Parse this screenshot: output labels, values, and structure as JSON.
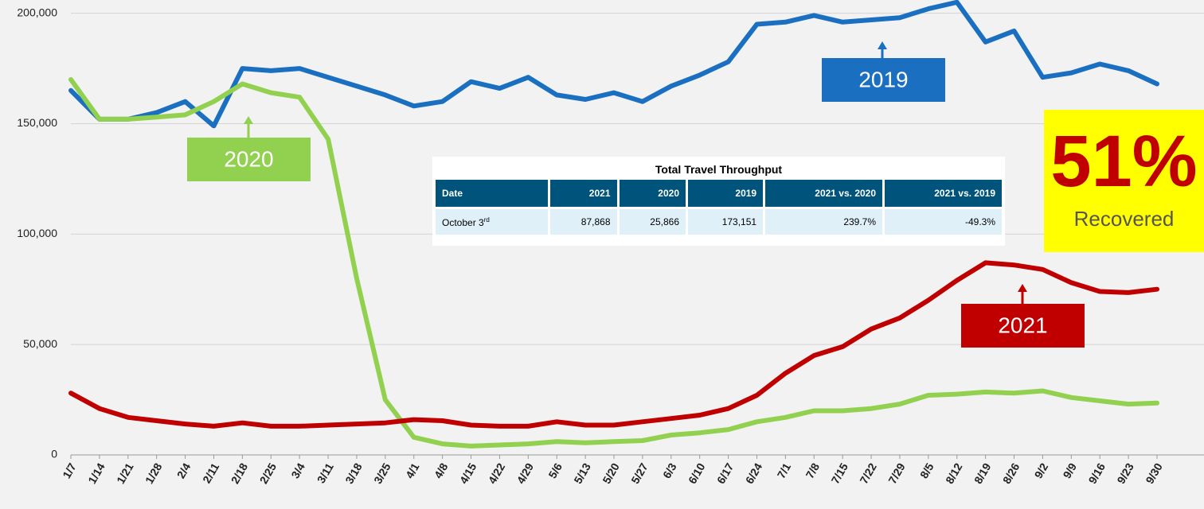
{
  "chart_data": {
    "type": "line",
    "categories": [
      "1/7",
      "1/14",
      "1/21",
      "1/28",
      "2/4",
      "2/11",
      "2/18",
      "2/25",
      "3/4",
      "3/11",
      "3/18",
      "3/25",
      "4/1",
      "4/8",
      "4/15",
      "4/22",
      "4/29",
      "5/6",
      "5/13",
      "5/20",
      "5/27",
      "6/3",
      "6/10",
      "6/17",
      "6/24",
      "7/1",
      "7/8",
      "7/15",
      "7/22",
      "7/29",
      "8/5",
      "8/12",
      "8/19",
      "8/26",
      "9/2",
      "9/9",
      "9/16",
      "9/23",
      "9/30"
    ],
    "series": [
      {
        "name": "2019",
        "color": "#1a6fc0",
        "values": [
          165000,
          152000,
          152000,
          155000,
          160000,
          149000,
          175000,
          174000,
          175000,
          171000,
          167000,
          163000,
          158000,
          160000,
          169000,
          166000,
          171000,
          163000,
          161000,
          164000,
          160000,
          167000,
          172000,
          178000,
          195000,
          196000,
          199000,
          196000,
          197000,
          198000,
          202000,
          205000,
          187000,
          192000,
          171000,
          173000,
          177000,
          174000,
          168000
        ]
      },
      {
        "name": "2020",
        "color": "#92d050",
        "values": [
          170000,
          152000,
          152000,
          153000,
          154000,
          160000,
          168000,
          164000,
          162000,
          143000,
          80000,
          25000,
          8000,
          5000,
          4000,
          4500,
          5000,
          6000,
          5500,
          6000,
          6500,
          9000,
          10000,
          11500,
          15000,
          17000,
          20000,
          20000,
          21000,
          23000,
          27000,
          27500,
          28500,
          28000,
          29000,
          26000,
          24500,
          23000,
          23500
        ]
      },
      {
        "name": "2021",
        "color": "#c00000",
        "values": [
          28000,
          21000,
          17000,
          15500,
          14000,
          13000,
          14500,
          13000,
          13000,
          13500,
          14000,
          14500,
          16000,
          15500,
          13500,
          13000,
          13000,
          15000,
          13500,
          13500,
          15000,
          16500,
          18000,
          21000,
          27000,
          37000,
          45000,
          49000,
          57000,
          62000,
          70000,
          79000,
          87000,
          86000,
          84000,
          78000,
          74000,
          73500,
          75000
        ]
      }
    ],
    "ylim": [
      0,
      206000
    ],
    "yticks": [
      0,
      {
        "value": 50000,
        "label": "50,000"
      },
      {
        "value": 100000,
        "label": "100,000"
      },
      {
        "value": 150000,
        "label": "150,000"
      },
      {
        "value": 200000,
        "label": "200,000"
      }
    ],
    "grid": true
  },
  "table": {
    "title": "Total Travel Throughput",
    "header": [
      "Date",
      "2021",
      "2020",
      "2019",
      "2021 vs. 2020",
      "2021 vs. 2019"
    ],
    "row": {
      "date": "October 3",
      "date_suffix": "rd",
      "cells": [
        "87,868",
        "25,866",
        "173,151",
        "239.7%",
        "-49.3%"
      ]
    }
  },
  "callout": {
    "value": "51%",
    "label": "Recovered"
  }
}
